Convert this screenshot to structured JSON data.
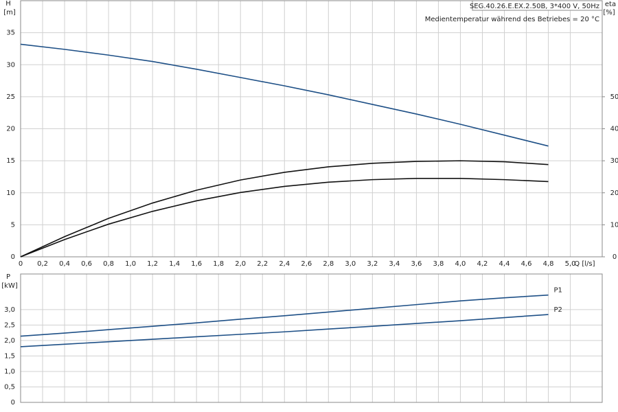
{
  "chart_data": [
    {
      "type": "line",
      "title": "SEG.40.26.E.EX.2.50B, 3*400 V, 50Hz",
      "annotation": "Medientemperatur während des Betriebes = 20 °C",
      "ylabel": "H",
      "yunit": "[m]",
      "y2label": "eta",
      "y2unit": "[%]",
      "xlabel": "Q [l/s]",
      "x": [
        0,
        0.4,
        0.8,
        1.2,
        1.6,
        2.0,
        2.4,
        2.8,
        3.2,
        3.6,
        4.0,
        4.4,
        4.8
      ],
      "series": [
        {
          "color": "#1d4f86",
          "values": [
            33.2,
            32.4,
            31.5,
            30.5,
            29.3,
            28.0,
            26.7,
            25.3,
            23.8,
            22.3,
            20.7,
            19.0,
            17.3
          ]
        },
        {
          "color": "#111111",
          "axis": "y2",
          "values": [
            0,
            6.3,
            12.0,
            16.8,
            20.8,
            24.0,
            26.4,
            28.1,
            29.2,
            29.8,
            30.0,
            29.7,
            28.8
          ]
        },
        {
          "color": "#111111",
          "axis": "y2",
          "values": [
            0,
            5.4,
            10.2,
            14.2,
            17.5,
            20.1,
            22.0,
            23.3,
            24.1,
            24.5,
            24.5,
            24.1,
            23.5
          ]
        }
      ],
      "xlim": [
        0,
        5.29
      ],
      "xticks": [
        0,
        {
          "value": 0.2,
          "label": "0,2"
        },
        {
          "value": 0.4,
          "label": "0,4"
        },
        {
          "value": 0.6,
          "label": "0,6"
        },
        {
          "value": 0.8,
          "label": "0,8"
        },
        {
          "value": 1.0,
          "label": "1,0"
        },
        {
          "value": 1.2,
          "label": "1,2"
        },
        {
          "value": 1.4,
          "label": "1,4"
        },
        {
          "value": 1.6,
          "label": "1,6"
        },
        {
          "value": 1.8,
          "label": "1,8"
        },
        {
          "value": 2.0,
          "label": "2,0"
        },
        {
          "value": 2.2,
          "label": "2,2"
        },
        {
          "value": 2.4,
          "label": "2,4"
        },
        {
          "value": 2.6,
          "label": "2,6"
        },
        {
          "value": 2.8,
          "label": "2,8"
        },
        {
          "value": 3.0,
          "label": "3,0"
        },
        {
          "value": 3.2,
          "label": "3,2"
        },
        {
          "value": 3.4,
          "label": "3,4"
        },
        {
          "value": 3.6,
          "label": "3,6"
        },
        {
          "value": 3.8,
          "label": "3,8"
        },
        {
          "value": 4.0,
          "label": "4,0"
        },
        {
          "value": 4.2,
          "label": "4,2"
        },
        {
          "value": 4.4,
          "label": "4,4"
        },
        {
          "value": 4.6,
          "label": "4,6"
        },
        {
          "value": 4.8,
          "label": "4,8"
        },
        {
          "value": 5.0,
          "label": "5,0"
        }
      ],
      "ylim": [
        0,
        40
      ],
      "yticks": [
        0,
        5,
        10,
        15,
        20,
        25,
        30,
        35
      ],
      "y2lim": [
        0,
        80
      ],
      "y2ticks": [
        0,
        10,
        20,
        30,
        40,
        50
      ],
      "grid": true
    },
    {
      "type": "line",
      "ylabel": "P",
      "yunit": "[kW]",
      "x": [
        0,
        0.4,
        0.8,
        1.2,
        1.6,
        2.0,
        2.4,
        2.8,
        3.2,
        3.6,
        4.0,
        4.4,
        4.8
      ],
      "series": [
        {
          "name": "P1",
          "color": "#1d4f86",
          "values": [
            2.14,
            2.24,
            2.35,
            2.46,
            2.57,
            2.69,
            2.8,
            2.92,
            3.04,
            3.16,
            3.28,
            3.38,
            3.47
          ]
        },
        {
          "name": "P2",
          "color": "#1d4f86",
          "values": [
            1.8,
            1.88,
            1.96,
            2.04,
            2.12,
            2.2,
            2.28,
            2.37,
            2.46,
            2.55,
            2.64,
            2.74,
            2.84
          ]
        }
      ],
      "xlim": [
        0,
        5.29
      ],
      "xticks": [
        0,
        0.2,
        0.4,
        0.6,
        0.8,
        1.0,
        1.2,
        1.4,
        1.6,
        1.8,
        2.0,
        2.2,
        2.4,
        2.6,
        2.8,
        3.0,
        3.2,
        3.4,
        3.6,
        3.8,
        4.0,
        4.2,
        4.4,
        4.6,
        4.8,
        5.0
      ],
      "ylim": [
        0,
        4.15
      ],
      "yticks": [
        0,
        {
          "value": 0.5,
          "label": "0,5"
        },
        {
          "value": 1.0,
          "label": "1,0"
        },
        {
          "value": 1.5,
          "label": "1,5"
        },
        {
          "value": 2.0,
          "label": "2,0"
        },
        {
          "value": 2.5,
          "label": "2,5"
        },
        {
          "value": 3.0,
          "label": "3,0"
        }
      ],
      "grid": true
    }
  ]
}
